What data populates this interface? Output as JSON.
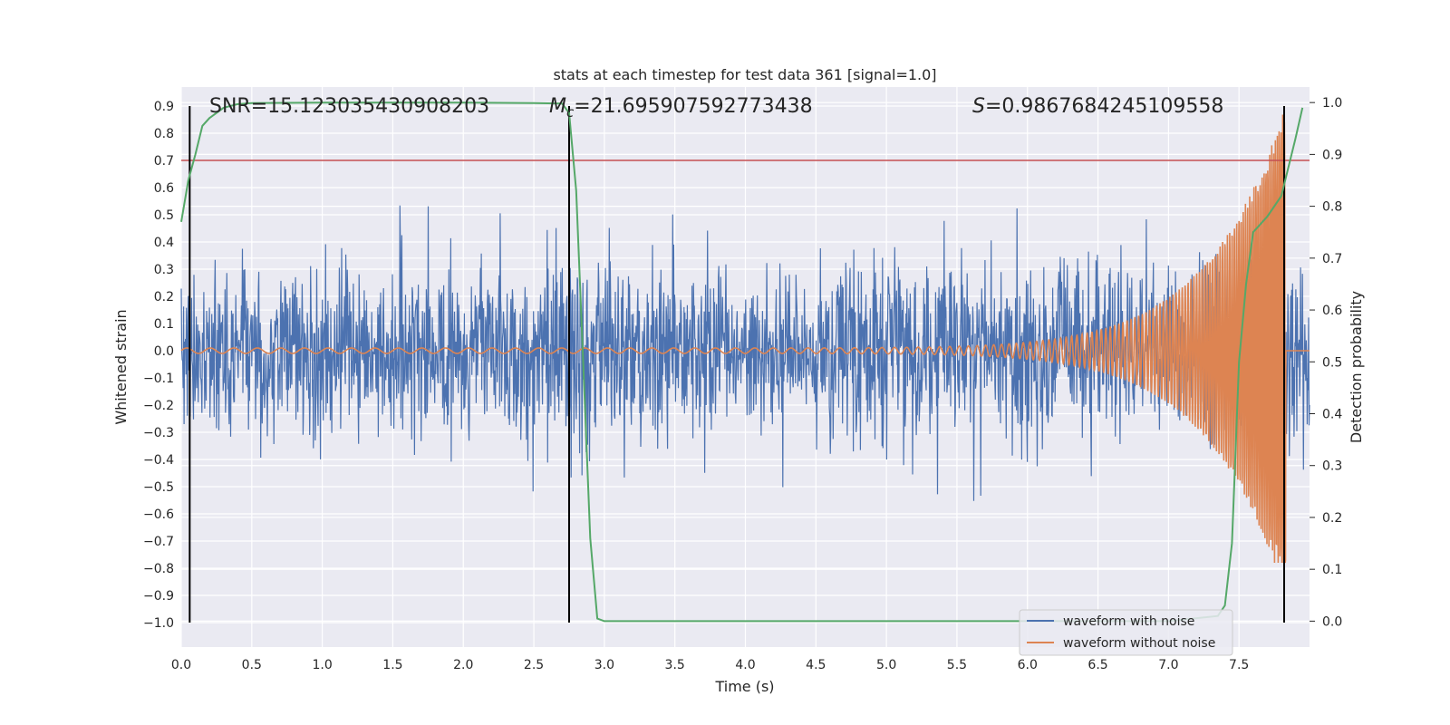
{
  "chart_data": {
    "type": "line",
    "title": "stats at each timestep for test data 361 [signal=1.0]",
    "xlabel": "Time (s)",
    "ylabel": "Whitened strain",
    "y2label": "Detection probability",
    "xlim": [
      0.0,
      8.0
    ],
    "ylim": [
      -1.09,
      0.97
    ],
    "y2lim": [
      -0.05,
      1.03
    ],
    "xticks": [
      0.0,
      0.5,
      1.0,
      1.5,
      2.0,
      2.5,
      3.0,
      3.5,
      4.0,
      4.5,
      5.0,
      5.5,
      6.0,
      6.5,
      7.0,
      7.5
    ],
    "xtick_labels": [
      "0.0",
      "0.5",
      "1.0",
      "1.5",
      "2.0",
      "2.5",
      "3.0",
      "3.5",
      "4.0",
      "4.5",
      "5.0",
      "5.5",
      "6.0",
      "6.5",
      "7.0",
      "7.5"
    ],
    "yticks": [
      -1.0,
      -0.9,
      -0.8,
      -0.7,
      -0.6,
      -0.5,
      -0.4,
      -0.3,
      -0.2,
      -0.1,
      0.0,
      0.1,
      0.2,
      0.3,
      0.4,
      0.5,
      0.6,
      0.7,
      0.8,
      0.9
    ],
    "ytick_labels": [
      "−1.0",
      "−0.9",
      "−0.8",
      "−0.7",
      "−0.6",
      "−0.5",
      "−0.4",
      "−0.3",
      "−0.2",
      "−0.1",
      "0.0",
      "0.1",
      "0.2",
      "0.3",
      "0.4",
      "0.5",
      "0.6",
      "0.7",
      "0.8",
      "0.9"
    ],
    "y2ticks": [
      0.0,
      0.1,
      0.2,
      0.3,
      0.4,
      0.5,
      0.6,
      0.7,
      0.8,
      0.9,
      1.0
    ],
    "y2tick_labels": [
      "0.0",
      "0.1",
      "0.2",
      "0.3",
      "0.4",
      "0.5",
      "0.6",
      "0.7",
      "0.8",
      "0.9",
      "1.0"
    ],
    "grid": true,
    "legend_position": "lower-right",
    "annotations": {
      "snr": "SNR=15.123035430908203",
      "mc": "=21.695907592773438",
      "mc_symbol": "M",
      "mc_subscript": "c",
      "s": "=0.9867684245109558",
      "s_symbol": "S"
    },
    "series": [
      {
        "name": "waveform with noise",
        "color": "#4c72b0",
        "noise_envelope": {
          "typical_abs": 0.3,
          "peak_max": 0.67,
          "peak_min": -0.65
        }
      },
      {
        "name": "waveform without noise",
        "color": "#dd8452",
        "chirp": {
          "start_amplitude": 0.01,
          "peak_time": 7.83,
          "peak_max": 0.9,
          "peak_min": -0.78,
          "start_frequency_hz": 6,
          "end_frequency_hz": 80
        }
      },
      {
        "name_hidden": "detection probability",
        "color": "#55a868",
        "axis": "right",
        "x": [
          0.0,
          0.05,
          0.1,
          0.15,
          0.2,
          0.3,
          0.4,
          0.5,
          1.0,
          1.5,
          2.0,
          2.5,
          2.7,
          2.75,
          2.8,
          2.85,
          2.9,
          2.95,
          3.0,
          3.5,
          4.0,
          5.0,
          6.0,
          7.0,
          7.35,
          7.4,
          7.45,
          7.5,
          7.55,
          7.6,
          7.7,
          7.8,
          7.9,
          7.95
        ],
        "y": [
          0.77,
          0.85,
          0.9,
          0.955,
          0.97,
          0.99,
          0.997,
          0.999,
          1.0,
          1.0,
          1.0,
          0.999,
          0.998,
          0.98,
          0.83,
          0.5,
          0.16,
          0.005,
          0.0,
          0.0,
          0.0,
          0.0,
          0.0,
          0.0,
          0.01,
          0.03,
          0.15,
          0.5,
          0.65,
          0.75,
          0.78,
          0.82,
          0.93,
          0.99
        ]
      }
    ],
    "threshold_line": {
      "value": 0.7,
      "color": "#c44e52"
    },
    "vertical_markers": [
      0.06,
      2.75,
      7.82
    ],
    "vertical_marker_color": "#000000"
  }
}
